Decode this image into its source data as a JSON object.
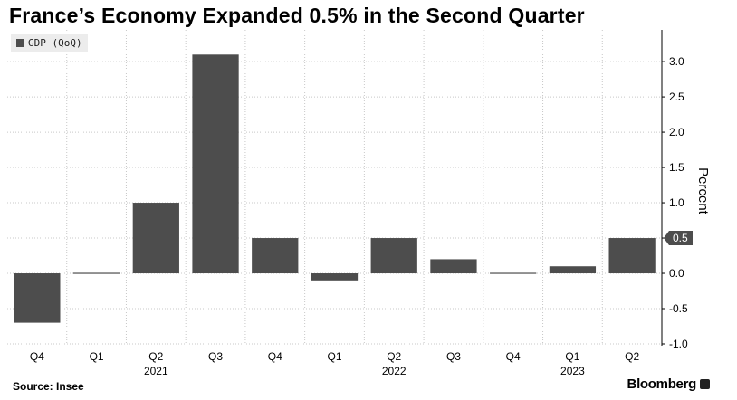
{
  "title": "France’s Economy Expanded 0.5% in the Second Quarter",
  "source": "Source: Insee",
  "brand": "Bloomberg",
  "colors": {
    "bar": "#4d4d4d",
    "grid": "#c8c8c8",
    "badge": "#4d4d4d"
  },
  "chart_data": {
    "type": "bar",
    "categories": [
      "Q4",
      "Q1",
      "Q2",
      "Q3",
      "Q4",
      "Q1",
      "Q2",
      "Q3",
      "Q4",
      "Q1",
      "Q2"
    ],
    "year_labels": [
      {
        "label": "2021",
        "category_index": 2
      },
      {
        "label": "2022",
        "category_index": 6
      },
      {
        "label": "2023",
        "category_index": 9
      }
    ],
    "series": [
      {
        "name": "GDP (QoQ)",
        "values": [
          -0.7,
          0.0,
          1.0,
          3.1,
          0.5,
          -0.1,
          0.5,
          0.2,
          0.0,
          0.1,
          0.5
        ]
      }
    ],
    "ylabel": "Percent",
    "ylim": [
      -1.0,
      3.45
    ],
    "yticks": [
      "-1.0",
      "-0.5",
      "0.0",
      "0.5",
      "1.0",
      "1.5",
      "2.0",
      "2.5",
      "3.0"
    ],
    "last_value_label": "0.5",
    "grid": true,
    "legend": "top-left",
    "axis_position": "right"
  }
}
